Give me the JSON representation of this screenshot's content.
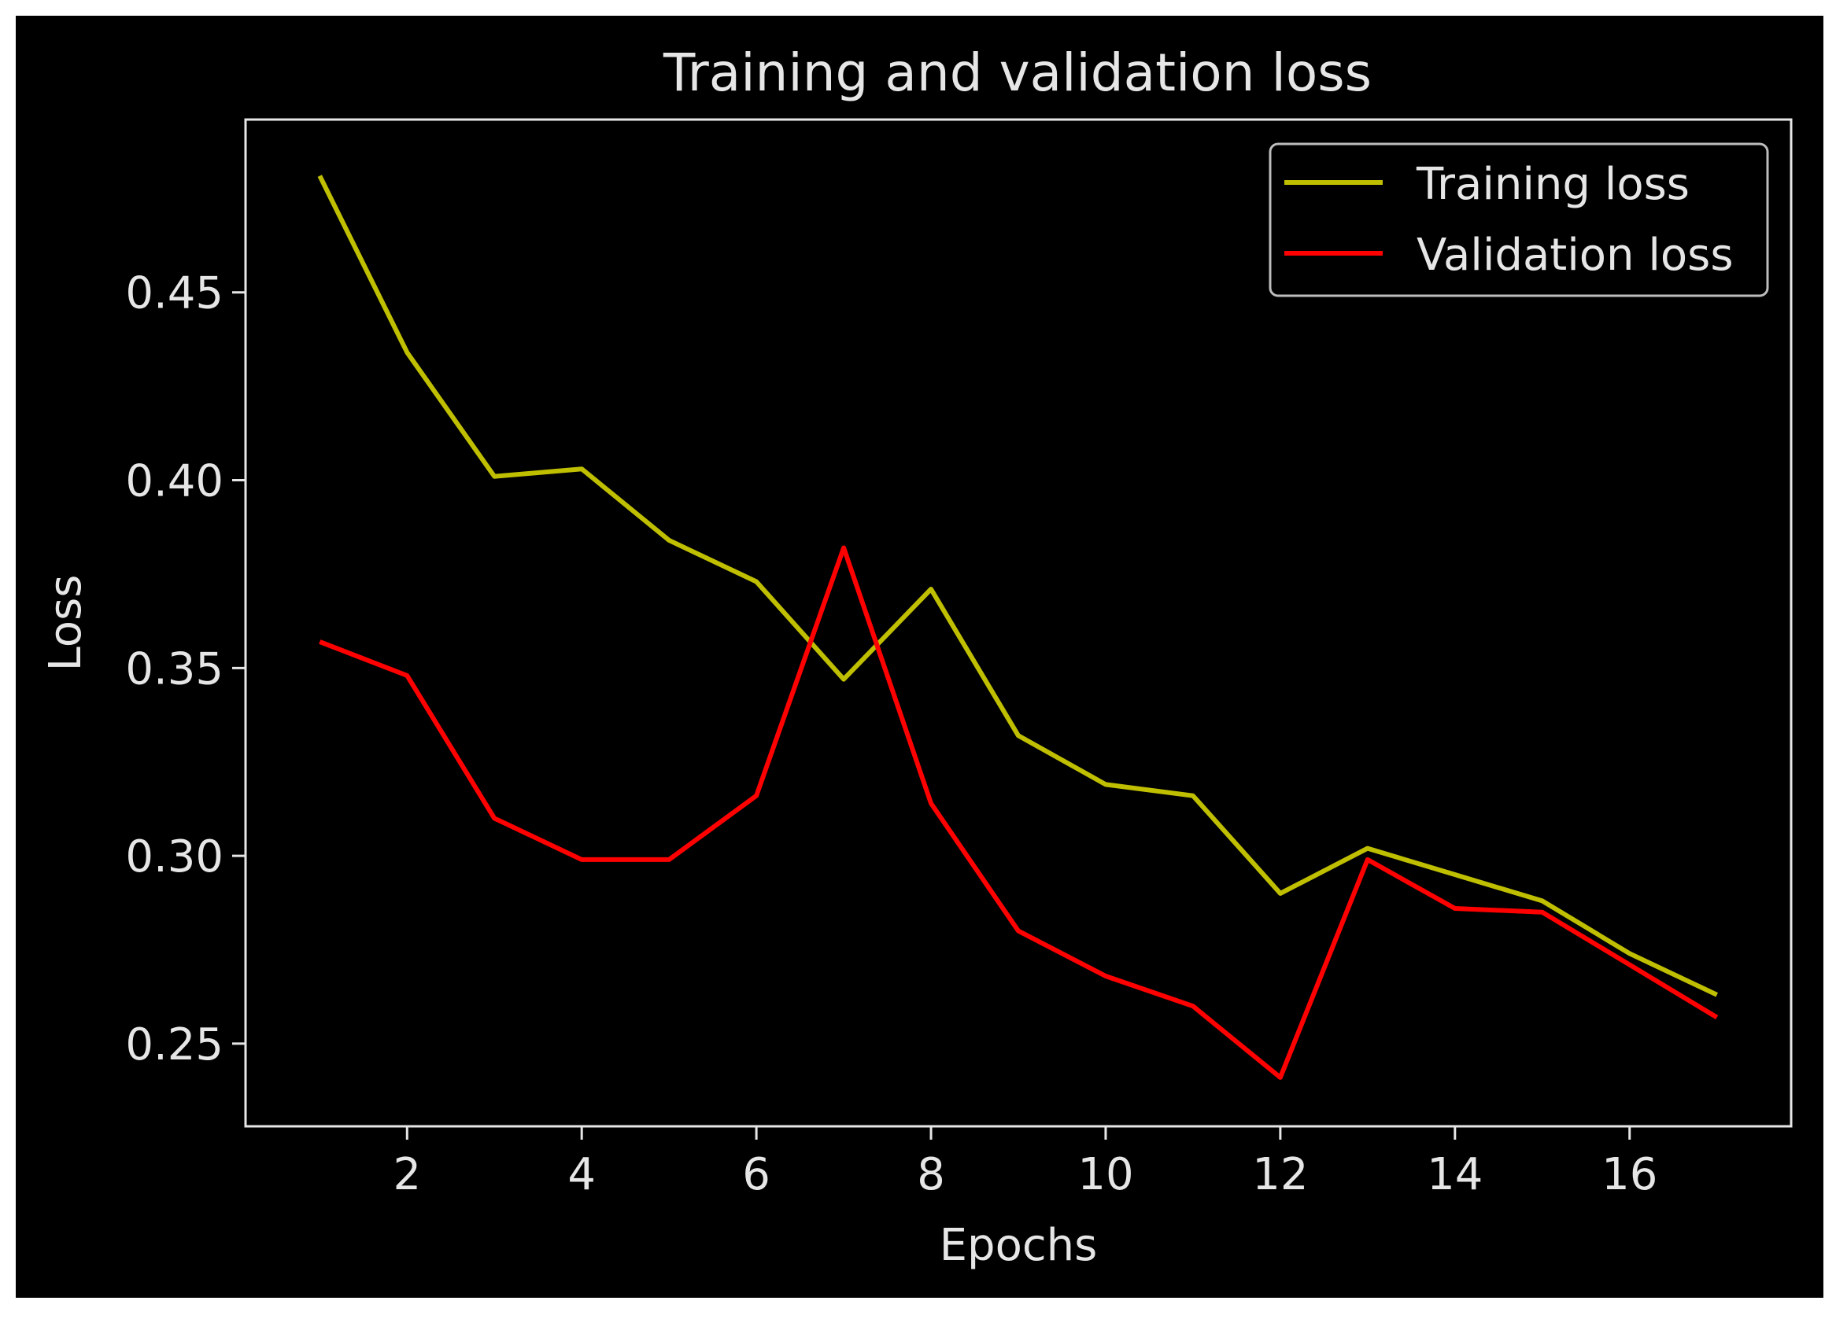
{
  "chart_data": {
    "type": "line",
    "title": "Training and validation loss",
    "xlabel": "Epochs",
    "ylabel": "Loss",
    "xlim": [
      0.15,
      17.85
    ],
    "ylim": [
      0.228,
      0.496
    ],
    "xticks": [
      2,
      4,
      6,
      8,
      10,
      12,
      14,
      16
    ],
    "xtick_labels": [
      "2",
      "4",
      "6",
      "8",
      "10",
      "12",
      "14",
      "16"
    ],
    "yticks": [
      0.25,
      0.3,
      0.35,
      0.4,
      0.45
    ],
    "ytick_labels": [
      "0.25",
      "0.30",
      "0.35",
      "0.40",
      "0.45"
    ],
    "grid": false,
    "legend_position": "top-right",
    "x": [
      1,
      2,
      3,
      4,
      5,
      6,
      7,
      8,
      9,
      10,
      11,
      12,
      13,
      14,
      15,
      16,
      17
    ],
    "series": [
      {
        "name": "Training loss",
        "color": "#bfbf00",
        "values": [
          0.481,
          0.434,
          0.401,
          0.403,
          0.384,
          0.373,
          0.347,
          0.371,
          0.332,
          0.319,
          0.316,
          0.29,
          0.302,
          0.295,
          0.288,
          0.274,
          0.263
        ]
      },
      {
        "name": "Validation loss",
        "color": "#ff0000",
        "values": [
          0.357,
          0.348,
          0.31,
          0.299,
          0.299,
          0.316,
          0.382,
          0.314,
          0.28,
          0.268,
          0.26,
          0.241,
          0.299,
          0.286,
          0.285,
          0.271,
          0.257
        ]
      }
    ]
  }
}
